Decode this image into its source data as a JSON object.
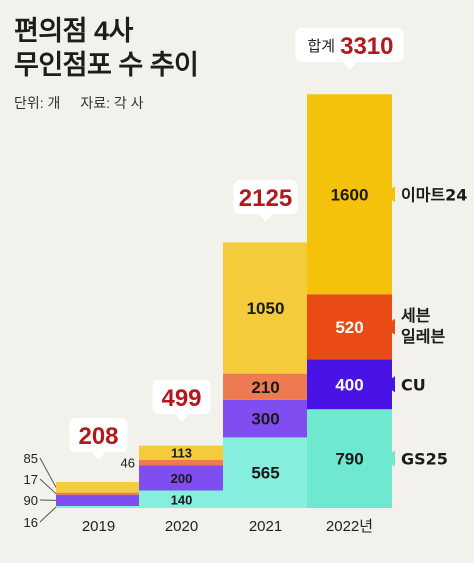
{
  "title": {
    "line1": "편의점 4사",
    "line2": "무인점포 수 추이"
  },
  "meta": {
    "unit": "단위: 개",
    "source": "자료: 각 사"
  },
  "total_prefix": "합계",
  "colors": {
    "emart24": "#f4cb3a",
    "emart24_2022": "#f5c20b",
    "seven": "#ee7a52",
    "seven_2022": "#ea4a13",
    "cu": "#7f4df0",
    "cu_2022": "#4a13e6",
    "gs25": "#86eedd",
    "gs25_2022": "#6ee9cf",
    "total_text": "#b3191c"
  },
  "chart_data": {
    "type": "bar",
    "stacked": true,
    "categories": [
      "2019",
      "2020",
      "2021",
      "2022년"
    ],
    "series": [
      {
        "name": "GS25",
        "values": [
          16,
          140,
          565,
          790
        ]
      },
      {
        "name": "CU",
        "values": [
          90,
          200,
          300,
          400
        ]
      },
      {
        "name": "세븐 일레븐",
        "values": [
          17,
          46,
          210,
          520
        ]
      },
      {
        "name": "이마트24",
        "values": [
          85,
          113,
          1050,
          1600
        ]
      }
    ],
    "totals": [
      208,
      499,
      2125,
      3310
    ],
    "value_labels": [
      [
        "16",
        "90",
        "17",
        "85"
      ],
      [
        "140",
        "200",
        "46",
        "113"
      ],
      [
        "565",
        "300",
        "210",
        "1050"
      ],
      [
        "790",
        "400",
        "520",
        "1600"
      ]
    ],
    "legend": [
      "이마트24",
      "세븐",
      "일레븐",
      "CU",
      "GS25"
    ],
    "legend_placement": "right",
    "grid": false
  }
}
